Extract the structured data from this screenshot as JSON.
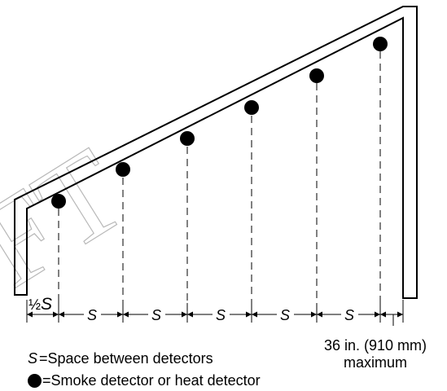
{
  "watermark": "FT",
  "spacing": {
    "half_label": "½",
    "symbol": "S",
    "segments": [
      "S",
      "S",
      "S",
      "S",
      "S"
    ]
  },
  "max_note": {
    "line1": "36 in. (910 mm)",
    "line2": "maximum"
  },
  "legend": {
    "space": {
      "symbol": "S",
      "text": "=Space between detectors"
    },
    "detector": {
      "text": "=Smoke detector or heat detector"
    }
  },
  "detectors_count": 6
}
